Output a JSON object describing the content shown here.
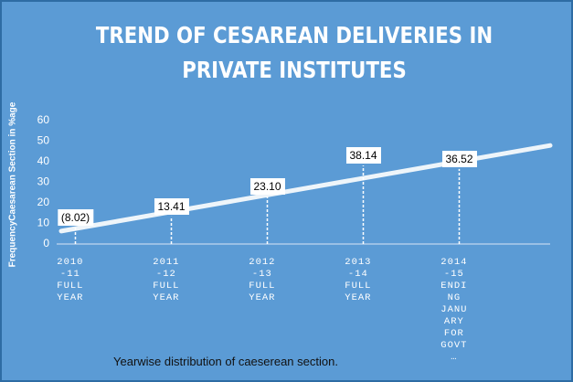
{
  "chart_data": {
    "type": "line",
    "title": "TREND OF CESAREAN DELIVERIES  IN PRIVATE INSTITUTES",
    "y_label": "FrequencyCaesarean Section in %age",
    "caption": "Yearwise distribution of caeserean section.",
    "categories": [
      "2010-11 FULL YEAR",
      "2011-12 FULL YEAR",
      "2012-13 FULL YEAR",
      "2013-14 FULL YEAR",
      "2014-15 ENDING JANUARY FOR GOVT…"
    ],
    "values": [
      8.02,
      13.41,
      23.1,
      38.14,
      36.52
    ],
    "value_labels": [
      "(8.02)",
      "13.41",
      "23.10",
      "38.14",
      "36.52"
    ],
    "trendline": "linear",
    "ylim": [
      0,
      60
    ],
    "yticks": [
      0,
      10,
      20,
      30,
      40,
      50,
      60
    ]
  }
}
